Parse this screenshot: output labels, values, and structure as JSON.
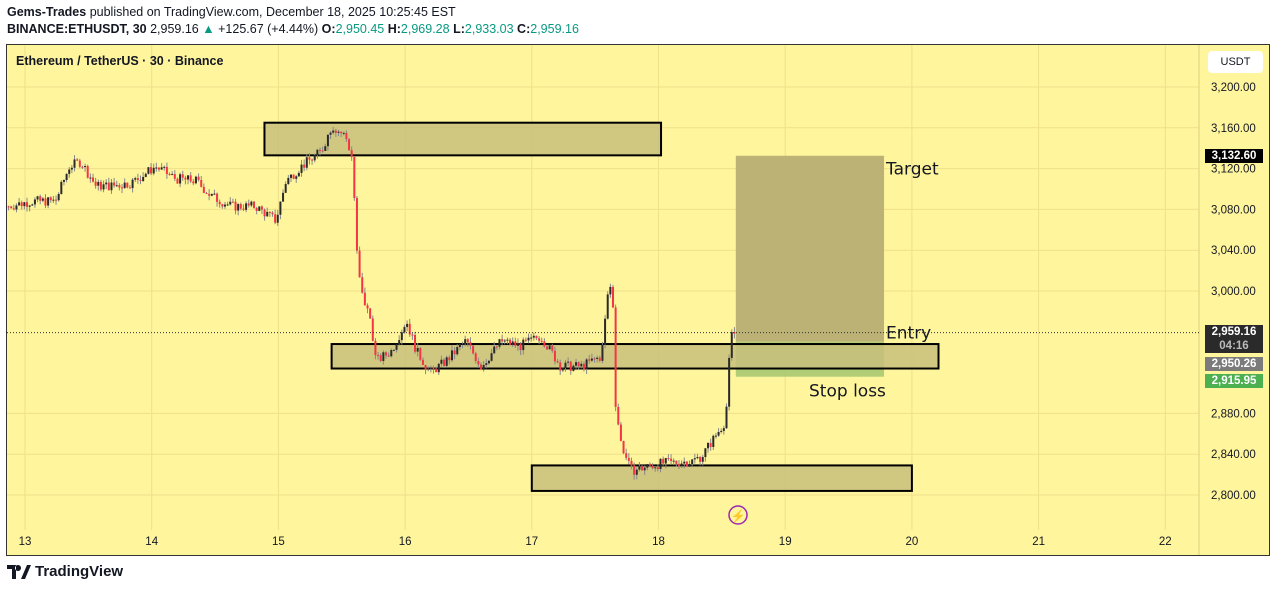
{
  "header": {
    "author": "Gems-Trades",
    "published_text": "published on TradingView.com, December 18, 2025 10:25:45 EST",
    "symbol": "BINANCE:ETHUSDT, 30",
    "last": "2,959.16",
    "change": "+125.67 (+4.44%)",
    "o_label": "O:",
    "o": "2,950.45",
    "h_label": "H:",
    "h": "2,969.28",
    "l_label": "L:",
    "l": "2,933.03",
    "c_label": "C:",
    "c": "2,959.16"
  },
  "chart_title": "Ethereum / TetherUS · 30 · Binance",
  "currency_button": "USDT",
  "price_labels": {
    "target": "3,132.60",
    "current": "2,959.16",
    "countdown": "04:16",
    "entry": "2,950.26",
    "stop": "2,915.95"
  },
  "footer": {
    "logo_text": "TradingView"
  },
  "colors": {
    "background": "#fff59d",
    "up": "#2a2a2a",
    "down": "#f23645",
    "zone": "#c8be7c",
    "target": "#b5ab72",
    "stop": "#9ec46e",
    "stop_label": "#4caf50"
  },
  "chart_data": {
    "type": "candlestick",
    "interval_minutes": 30,
    "x_unit": "day of December 2025",
    "xlim": [
      12.86,
      22.3
    ],
    "ylim": [
      2775,
      3230
    ],
    "x_ticks": [
      "13",
      "14",
      "15",
      "16",
      "17",
      "18",
      "19",
      "20",
      "21",
      "22"
    ],
    "y_ticks": [
      "3,200.00",
      "3,160.00",
      "3,120.00",
      "3,080.00",
      "3,040.00",
      "3,000.00",
      "2,880.00",
      "2,840.00",
      "2,800.00"
    ],
    "grid": true,
    "close_path": {
      "x": [
        12.87,
        13.05,
        13.24,
        13.35,
        13.44,
        13.56,
        13.68,
        13.84,
        14.03,
        14.19,
        14.35,
        14.47,
        14.63,
        14.82,
        14.98,
        15.06,
        15.18,
        15.34,
        15.42,
        15.53,
        15.59,
        15.61,
        15.65,
        15.73,
        15.77,
        15.89,
        16.01,
        16.09,
        16.2,
        16.32,
        16.48,
        16.6,
        16.76,
        16.91,
        17.07,
        17.23,
        17.39,
        17.55,
        17.61,
        17.64,
        17.66,
        17.7,
        17.78,
        17.86,
        18.02,
        18.26,
        18.34,
        18.45,
        18.53,
        18.57,
        18.61
      ],
      "y": [
        3083,
        3088,
        3088,
        3122,
        3127,
        3103,
        3103,
        3106,
        3122,
        3110,
        3108,
        3093,
        3083,
        3083,
        3069,
        3108,
        3122,
        3137,
        3162,
        3152,
        3127,
        3049,
        3000,
        2971,
        2931,
        2941,
        2971,
        2941,
        2920,
        2931,
        2951,
        2926,
        2951,
        2946,
        2956,
        2926,
        2926,
        2936,
        3010,
        2990,
        2892,
        2853,
        2824,
        2826,
        2831,
        2833,
        2838,
        2858,
        2873,
        2956,
        2959
      ]
    },
    "zones": [
      {
        "x": [
          14.89,
          18.02
        ],
        "y": [
          3133,
          3165
        ]
      },
      {
        "x": [
          15.42,
          20.21
        ],
        "y": [
          2924,
          2948
        ]
      },
      {
        "x": [
          17.0,
          20.0
        ],
        "y": [
          2804,
          2829
        ]
      }
    ],
    "position": {
      "x": [
        18.61,
        19.78
      ],
      "target": 3132.6,
      "entry": 2950.26,
      "stop": 2915.95,
      "target_label": "Target",
      "entry_label": "Entry",
      "stop_label": "Stop loss"
    },
    "current_price": 2959.16
  }
}
